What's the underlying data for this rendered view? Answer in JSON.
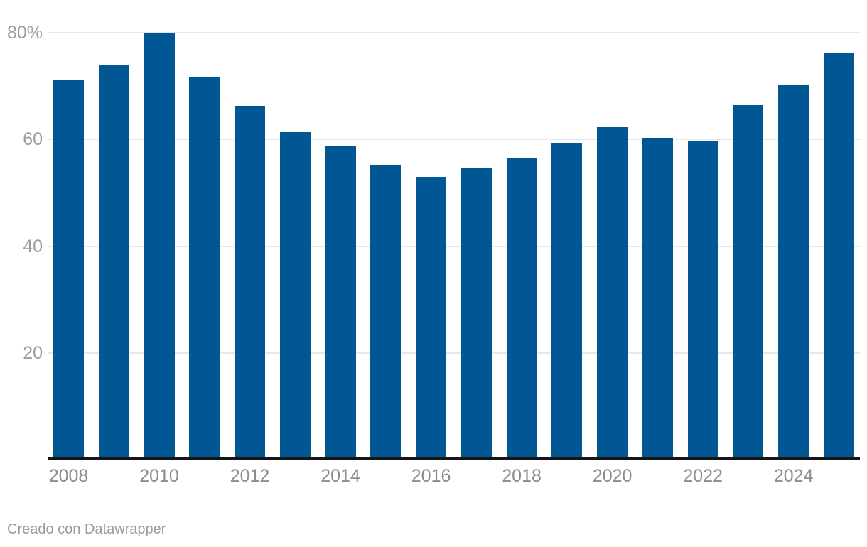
{
  "chart_data": {
    "type": "bar",
    "categories": [
      "2008",
      "2009",
      "2010",
      "2011",
      "2012",
      "2013",
      "2014",
      "2015",
      "2016",
      "2017",
      "2018",
      "2019",
      "2020",
      "2021",
      "2022",
      "2023",
      "2024",
      "2025"
    ],
    "values": [
      71.1,
      73.8,
      79.8,
      71.5,
      66.2,
      61.2,
      58.6,
      55.1,
      52.9,
      54.5,
      56.3,
      59.2,
      62.2,
      60.2,
      59.5,
      66.3,
      70.2,
      76.1
    ],
    "unit": "%",
    "ylim": [
      0,
      80
    ],
    "y_ticks": [
      {
        "value": 80,
        "label": "80%"
      },
      {
        "value": 60,
        "label": "60"
      },
      {
        "value": 40,
        "label": "40"
      },
      {
        "value": 20,
        "label": "20"
      }
    ],
    "x_tick_labels": [
      "2008",
      "2010",
      "2012",
      "2014",
      "2016",
      "2018",
      "2020",
      "2022",
      "2024"
    ],
    "grid": "horizontal",
    "legend": "none",
    "colors": {
      "bar": "#005793",
      "grid": "#e7e7e7",
      "axis_line": "#161616",
      "y_label": "#9d9d9d",
      "x_label": "#8c8c8c"
    }
  },
  "footer": {
    "credit": "Creado con Datawrapper",
    "color": "#9a9a9a"
  }
}
